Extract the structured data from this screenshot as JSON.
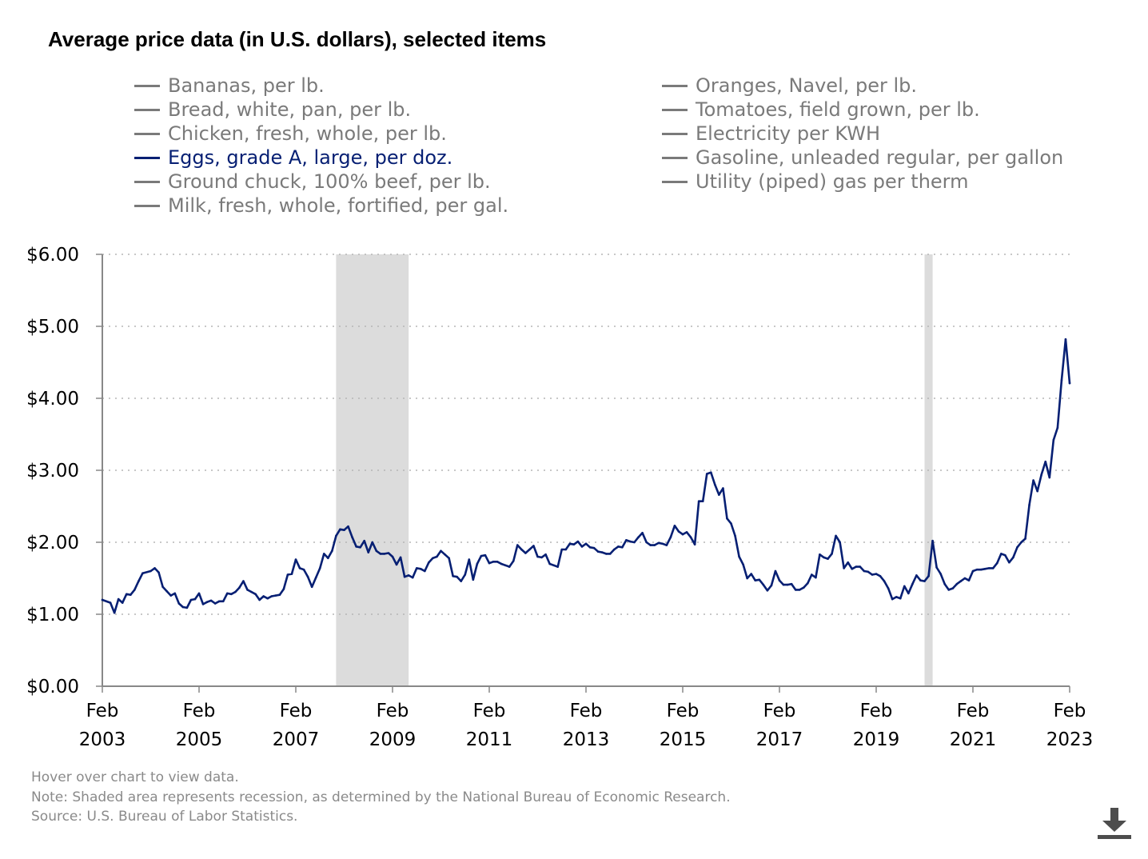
{
  "title": "Average price data (in U.S. dollars), selected items",
  "legend": {
    "left": [
      {
        "label": "Bananas, per lb.",
        "active": false
      },
      {
        "label": "Bread, white, pan, per lb.",
        "active": false
      },
      {
        "label": "Chicken, fresh, whole, per lb.",
        "active": false
      },
      {
        "label": "Eggs, grade A, large, per doz.",
        "active": true
      },
      {
        "label": "Ground chuck, 100% beef, per lb.",
        "active": false
      },
      {
        "label": "Milk, fresh, whole, fortified, per gal.",
        "active": false
      }
    ],
    "right": [
      {
        "label": "Oranges, Navel, per lb.",
        "active": false
      },
      {
        "label": "Tomatoes, field grown, per lb.",
        "active": false
      },
      {
        "label": "Electricity per KWH",
        "active": false
      },
      {
        "label": "Gasoline, unleaded regular, per gallon",
        "active": false
      },
      {
        "label": "Utility (piped) gas per therm",
        "active": false
      }
    ]
  },
  "colors": {
    "active_series": "#061f73",
    "inactive": "#7a7a7a",
    "recession": "#dcdcdc",
    "grid": "#b5b5b5"
  },
  "chart_data": {
    "type": "line",
    "title": "Average price data (in U.S. dollars), selected items",
    "xlabel": "",
    "ylabel": "",
    "ylim": [
      0,
      6
    ],
    "xlim": [
      "2003-02",
      "2023-02"
    ],
    "y_ticks": [
      "$0.00",
      "$1.00",
      "$2.00",
      "$3.00",
      "$4.00",
      "$5.00",
      "$6.00"
    ],
    "x_ticks": [
      {
        "month": "Feb",
        "year": "2003"
      },
      {
        "month": "Feb",
        "year": "2005"
      },
      {
        "month": "Feb",
        "year": "2007"
      },
      {
        "month": "Feb",
        "year": "2009"
      },
      {
        "month": "Feb",
        "year": "2011"
      },
      {
        "month": "Feb",
        "year": "2013"
      },
      {
        "month": "Feb",
        "year": "2015"
      },
      {
        "month": "Feb",
        "year": "2017"
      },
      {
        "month": "Feb",
        "year": "2019"
      },
      {
        "month": "Feb",
        "year": "2021"
      },
      {
        "month": "Feb",
        "year": "2023"
      }
    ],
    "grid": "horizontal dotted",
    "recessions": [
      {
        "start": "2007-12",
        "end": "2009-06"
      },
      {
        "start": "2020-02",
        "end": "2020-04"
      }
    ],
    "series": [
      {
        "name": "Eggs, grade A, large, per doz.",
        "points": [
          [
            "2003-02",
            1.2
          ],
          [
            "2003-04",
            1.16
          ],
          [
            "2003-05",
            1.02
          ],
          [
            "2003-06",
            1.21
          ],
          [
            "2003-07",
            1.16
          ],
          [
            "2003-08",
            1.28
          ],
          [
            "2003-09",
            1.27
          ],
          [
            "2003-10",
            1.34
          ],
          [
            "2003-11",
            1.46
          ],
          [
            "2003-12",
            1.57
          ],
          [
            "2004-02",
            1.6
          ],
          [
            "2004-03",
            1.64
          ],
          [
            "2004-04",
            1.58
          ],
          [
            "2004-05",
            1.38
          ],
          [
            "2004-06",
            1.32
          ],
          [
            "2004-07",
            1.26
          ],
          [
            "2004-08",
            1.29
          ],
          [
            "2004-09",
            1.15
          ],
          [
            "2004-10",
            1.1
          ],
          [
            "2004-11",
            1.09
          ],
          [
            "2004-12",
            1.2
          ],
          [
            "2005-01",
            1.21
          ],
          [
            "2005-02",
            1.29
          ],
          [
            "2005-03",
            1.14
          ],
          [
            "2005-04",
            1.17
          ],
          [
            "2005-05",
            1.19
          ],
          [
            "2005-06",
            1.15
          ],
          [
            "2005-07",
            1.18
          ],
          [
            "2005-08",
            1.18
          ],
          [
            "2005-09",
            1.29
          ],
          [
            "2005-10",
            1.28
          ],
          [
            "2005-11",
            1.31
          ],
          [
            "2005-12",
            1.37
          ],
          [
            "2006-01",
            1.46
          ],
          [
            "2006-02",
            1.34
          ],
          [
            "2006-03",
            1.31
          ],
          [
            "2006-04",
            1.28
          ],
          [
            "2006-05",
            1.2
          ],
          [
            "2006-06",
            1.25
          ],
          [
            "2006-07",
            1.22
          ],
          [
            "2006-08",
            1.25
          ],
          [
            "2006-09",
            1.26
          ],
          [
            "2006-10",
            1.27
          ],
          [
            "2006-11",
            1.35
          ],
          [
            "2006-12",
            1.55
          ],
          [
            "2007-01",
            1.56
          ],
          [
            "2007-02",
            1.76
          ],
          [
            "2007-03",
            1.64
          ],
          [
            "2007-04",
            1.62
          ],
          [
            "2007-05",
            1.52
          ],
          [
            "2007-06",
            1.38
          ],
          [
            "2007-07",
            1.51
          ],
          [
            "2007-08",
            1.64
          ],
          [
            "2007-09",
            1.84
          ],
          [
            "2007-10",
            1.78
          ],
          [
            "2007-11",
            1.88
          ],
          [
            "2007-12",
            2.09
          ],
          [
            "2008-01",
            2.18
          ],
          [
            "2008-02",
            2.17
          ],
          [
            "2008-03",
            2.22
          ],
          [
            "2008-04",
            2.07
          ],
          [
            "2008-05",
            1.94
          ],
          [
            "2008-06",
            1.93
          ],
          [
            "2008-07",
            2.02
          ],
          [
            "2008-08",
            1.86
          ],
          [
            "2008-09",
            2.0
          ],
          [
            "2008-10",
            1.88
          ],
          [
            "2008-11",
            1.84
          ],
          [
            "2008-12",
            1.84
          ],
          [
            "2009-01",
            1.85
          ],
          [
            "2009-02",
            1.8
          ],
          [
            "2009-03",
            1.69
          ],
          [
            "2009-04",
            1.79
          ],
          [
            "2009-05",
            1.52
          ],
          [
            "2009-06",
            1.54
          ],
          [
            "2009-07",
            1.51
          ],
          [
            "2009-08",
            1.64
          ],
          [
            "2009-09",
            1.63
          ],
          [
            "2009-10",
            1.6
          ],
          [
            "2009-11",
            1.72
          ],
          [
            "2009-12",
            1.78
          ],
          [
            "2010-01",
            1.8
          ],
          [
            "2010-02",
            1.88
          ],
          [
            "2010-03",
            1.83
          ],
          [
            "2010-04",
            1.78
          ],
          [
            "2010-05",
            1.53
          ],
          [
            "2010-06",
            1.52
          ],
          [
            "2010-07",
            1.46
          ],
          [
            "2010-08",
            1.55
          ],
          [
            "2010-09",
            1.76
          ],
          [
            "2010-10",
            1.48
          ],
          [
            "2010-11",
            1.7
          ],
          [
            "2010-12",
            1.81
          ],
          [
            "2011-01",
            1.82
          ],
          [
            "2011-02",
            1.71
          ],
          [
            "2011-03",
            1.73
          ],
          [
            "2011-04",
            1.73
          ],
          [
            "2011-05",
            1.7
          ],
          [
            "2011-06",
            1.68
          ],
          [
            "2011-07",
            1.66
          ],
          [
            "2011-08",
            1.74
          ],
          [
            "2011-09",
            1.96
          ],
          [
            "2011-10",
            1.9
          ],
          [
            "2011-11",
            1.85
          ],
          [
            "2011-12",
            1.9
          ],
          [
            "2012-01",
            1.95
          ],
          [
            "2012-02",
            1.8
          ],
          [
            "2012-03",
            1.79
          ],
          [
            "2012-04",
            1.83
          ],
          [
            "2012-05",
            1.7
          ],
          [
            "2012-06",
            1.68
          ],
          [
            "2012-07",
            1.66
          ],
          [
            "2012-08",
            1.9
          ],
          [
            "2012-09",
            1.9
          ],
          [
            "2012-10",
            1.98
          ],
          [
            "2012-11",
            1.97
          ],
          [
            "2012-12",
            2.01
          ],
          [
            "2013-01",
            1.94
          ],
          [
            "2013-02",
            1.98
          ],
          [
            "2013-03",
            1.93
          ],
          [
            "2013-04",
            1.92
          ],
          [
            "2013-05",
            1.87
          ],
          [
            "2013-06",
            1.86
          ],
          [
            "2013-07",
            1.84
          ],
          [
            "2013-08",
            1.84
          ],
          [
            "2013-09",
            1.9
          ],
          [
            "2013-10",
            1.94
          ],
          [
            "2013-11",
            1.93
          ],
          [
            "2013-12",
            2.03
          ],
          [
            "2014-01",
            2.01
          ],
          [
            "2014-02",
            2.0
          ],
          [
            "2014-03",
            2.07
          ],
          [
            "2014-04",
            2.13
          ],
          [
            "2014-05",
            2.0
          ],
          [
            "2014-06",
            1.96
          ],
          [
            "2014-07",
            1.96
          ],
          [
            "2014-08",
            1.99
          ],
          [
            "2014-09",
            1.98
          ],
          [
            "2014-10",
            1.96
          ],
          [
            "2014-11",
            2.07
          ],
          [
            "2014-12",
            2.23
          ],
          [
            "2015-01",
            2.15
          ],
          [
            "2015-02",
            2.11
          ],
          [
            "2015-03",
            2.14
          ],
          [
            "2015-04",
            2.07
          ],
          [
            "2015-05",
            1.97
          ],
          [
            "2015-06",
            2.57
          ],
          [
            "2015-07",
            2.57
          ],
          [
            "2015-08",
            2.95
          ],
          [
            "2015-09",
            2.97
          ],
          [
            "2015-10",
            2.8
          ],
          [
            "2015-11",
            2.66
          ],
          [
            "2015-12",
            2.75
          ],
          [
            "2016-01",
            2.33
          ],
          [
            "2016-02",
            2.26
          ],
          [
            "2016-03",
            2.09
          ],
          [
            "2016-04",
            1.8
          ],
          [
            "2016-05",
            1.69
          ],
          [
            "2016-06",
            1.5
          ],
          [
            "2016-07",
            1.56
          ],
          [
            "2016-08",
            1.47
          ],
          [
            "2016-09",
            1.48
          ],
          [
            "2016-10",
            1.41
          ],
          [
            "2016-11",
            1.33
          ],
          [
            "2016-12",
            1.4
          ],
          [
            "2017-01",
            1.6
          ],
          [
            "2017-02",
            1.47
          ],
          [
            "2017-03",
            1.41
          ],
          [
            "2017-04",
            1.41
          ],
          [
            "2017-05",
            1.42
          ],
          [
            "2017-06",
            1.34
          ],
          [
            "2017-07",
            1.34
          ],
          [
            "2017-08",
            1.37
          ],
          [
            "2017-09",
            1.43
          ],
          [
            "2017-10",
            1.55
          ],
          [
            "2017-11",
            1.51
          ],
          [
            "2017-12",
            1.83
          ],
          [
            "2018-01",
            1.79
          ],
          [
            "2018-02",
            1.77
          ],
          [
            "2018-03",
            1.84
          ],
          [
            "2018-04",
            2.09
          ],
          [
            "2018-05",
            2.0
          ],
          [
            "2018-06",
            1.64
          ],
          [
            "2018-07",
            1.72
          ],
          [
            "2018-08",
            1.63
          ],
          [
            "2018-09",
            1.66
          ],
          [
            "2018-10",
            1.66
          ],
          [
            "2018-11",
            1.6
          ],
          [
            "2018-12",
            1.59
          ],
          [
            "2019-01",
            1.55
          ],
          [
            "2019-02",
            1.56
          ],
          [
            "2019-03",
            1.53
          ],
          [
            "2019-04",
            1.46
          ],
          [
            "2019-05",
            1.36
          ],
          [
            "2019-06",
            1.21
          ],
          [
            "2019-07",
            1.24
          ],
          [
            "2019-08",
            1.22
          ],
          [
            "2019-09",
            1.39
          ],
          [
            "2019-10",
            1.29
          ],
          [
            "2019-11",
            1.42
          ],
          [
            "2019-12",
            1.54
          ],
          [
            "2020-01",
            1.47
          ],
          [
            "2020-02",
            1.46
          ],
          [
            "2020-03",
            1.53
          ],
          [
            "2020-04",
            2.02
          ],
          [
            "2020-05",
            1.65
          ],
          [
            "2020-06",
            1.56
          ],
          [
            "2020-07",
            1.42
          ],
          [
            "2020-08",
            1.34
          ],
          [
            "2020-09",
            1.36
          ],
          [
            "2020-10",
            1.42
          ],
          [
            "2020-11",
            1.46
          ],
          [
            "2020-12",
            1.5
          ],
          [
            "2021-01",
            1.47
          ],
          [
            "2021-02",
            1.6
          ],
          [
            "2021-03",
            1.62
          ],
          [
            "2021-04",
            1.62
          ],
          [
            "2021-05",
            1.63
          ],
          [
            "2021-06",
            1.64
          ],
          [
            "2021-07",
            1.64
          ],
          [
            "2021-08",
            1.71
          ],
          [
            "2021-09",
            1.84
          ],
          [
            "2021-10",
            1.82
          ],
          [
            "2021-11",
            1.72
          ],
          [
            "2021-12",
            1.79
          ],
          [
            "2022-01",
            1.93
          ],
          [
            "2022-02",
            2.0
          ],
          [
            "2022-03",
            2.05
          ],
          [
            "2022-04",
            2.52
          ],
          [
            "2022-05",
            2.86
          ],
          [
            "2022-06",
            2.71
          ],
          [
            "2022-07",
            2.94
          ],
          [
            "2022-08",
            3.12
          ],
          [
            "2022-09",
            2.9
          ],
          [
            "2022-10",
            3.42
          ],
          [
            "2022-11",
            3.59
          ],
          [
            "2022-12",
            4.25
          ],
          [
            "2023-01",
            4.82
          ],
          [
            "2023-02",
            4.21
          ]
        ]
      }
    ]
  },
  "notes": {
    "hover": "Hover over chart to view data.",
    "note": "Note: Shaded area represents recession, as determined by the National Bureau of Economic Research.",
    "source": "Source: U.S. Bureau of Labor Statistics."
  }
}
